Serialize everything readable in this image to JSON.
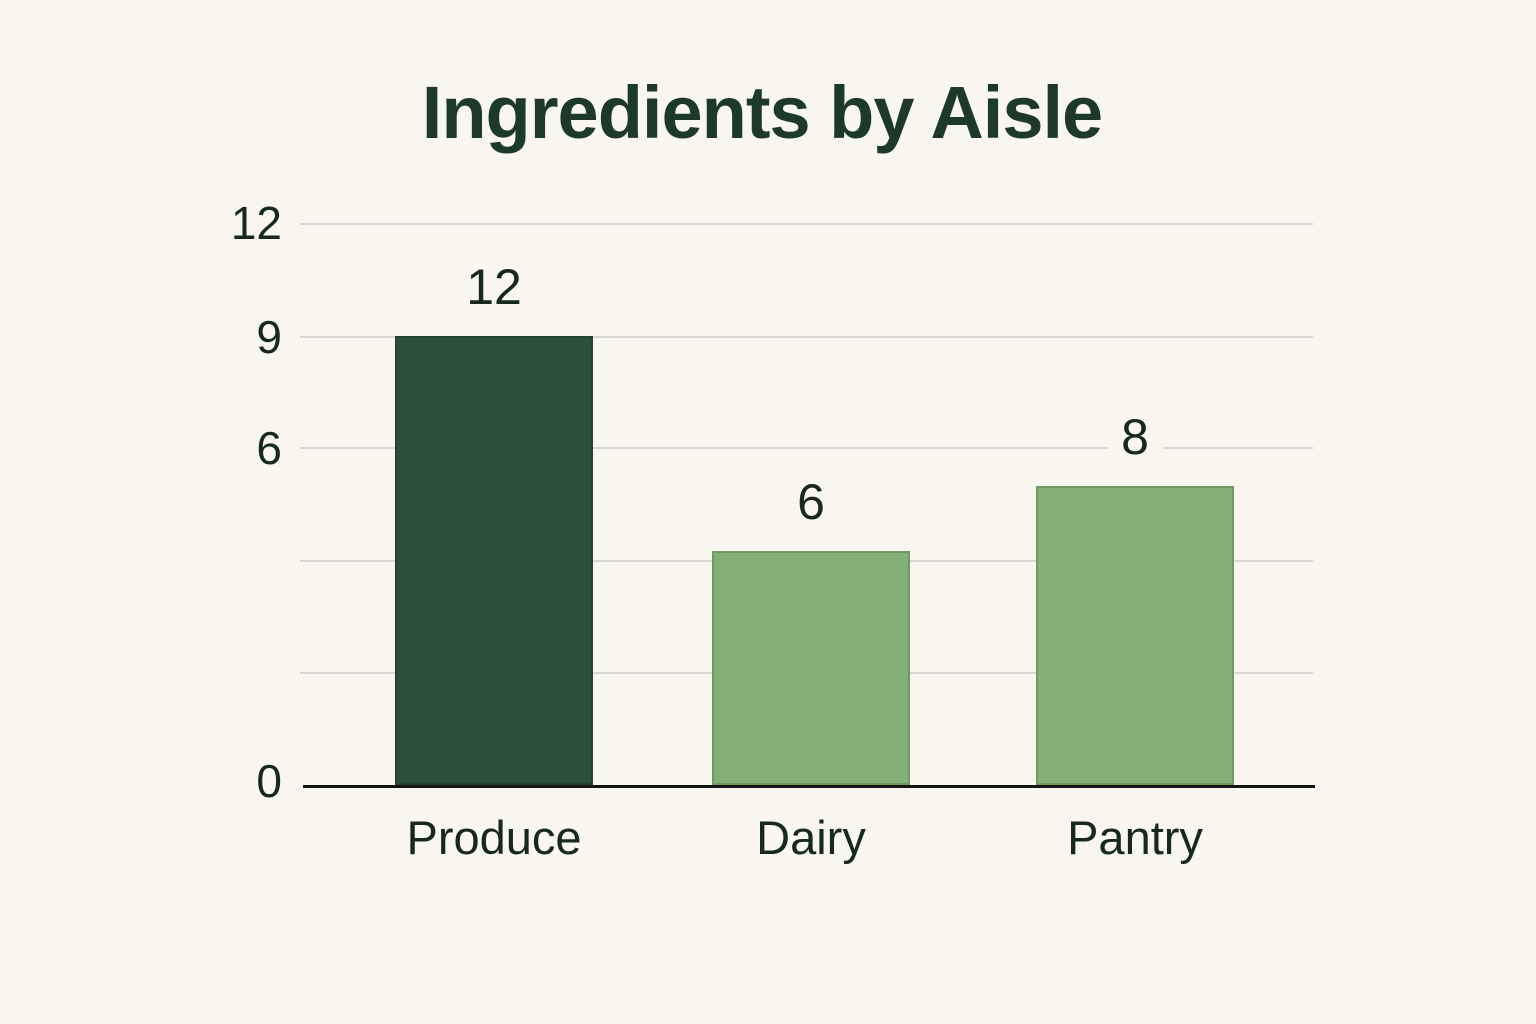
{
  "chart_data": {
    "type": "bar",
    "title": "Ingredients by Aisle",
    "categories": [
      "Produce",
      "Dairy",
      "Pantry"
    ],
    "values": [
      12,
      6,
      8
    ],
    "value_labels": [
      "12",
      "6",
      "8"
    ],
    "ytick_labels": [
      "12",
      "9",
      "6",
      "0"
    ],
    "ylim": [
      0,
      12
    ],
    "grid": true,
    "legend_position": "none",
    "xlabel": "",
    "ylabel": "",
    "colors": {
      "background": "#f8f6ef",
      "bar_fills": [
        "#2a4f3b",
        "#84b078",
        "#84b078"
      ],
      "bar_borders": [
        "#234330",
        "#6f9a62",
        "#6f9a62"
      ],
      "gridline": "#d8d7d1",
      "axis_line": "#151515",
      "title_text": "#1d392b",
      "label_text": "#17281e"
    }
  }
}
